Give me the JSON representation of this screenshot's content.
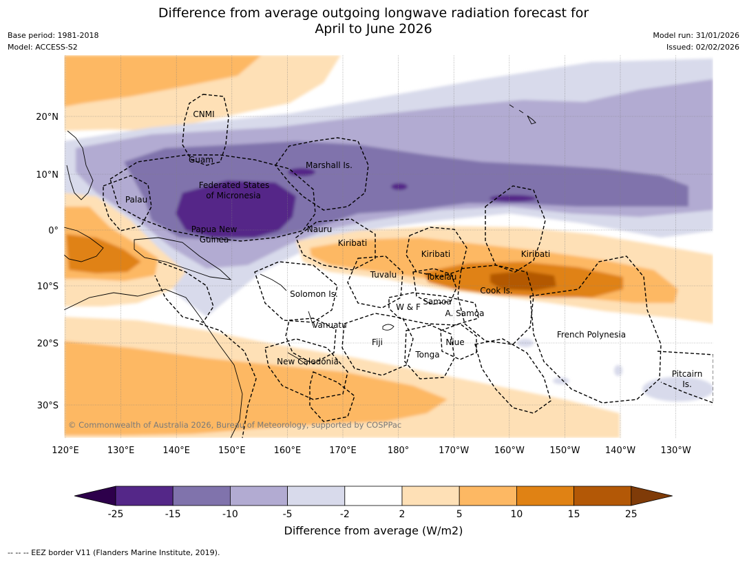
{
  "title_line1": "Difference from average outgoing longwave radiation forecast for",
  "title_line2": "April to June 2026",
  "base_period": "Base period: 1981-2018",
  "model": "Model: ACCESS-S2",
  "model_run": "Model run: 31/01/2026",
  "issued": "Issued: 02/02/2026",
  "lon_labels": [
    "120°E",
    "130°E",
    "140°E",
    "150°E",
    "160°E",
    "170°E",
    "180°",
    "170°W",
    "160°W",
    "150°W",
    "140°W",
    "130°W"
  ],
  "lat_labels": [
    "20°N",
    "10°N",
    "0°",
    "10°S",
    "20°S",
    "30°S"
  ],
  "regions": [
    "CNMI",
    "Guam",
    "Marshall Is.",
    "Federated States",
    "of Micronesia",
    "Palau",
    "Papua New",
    "Guinea",
    "Nauru",
    "Kiribati",
    "Kiribati",
    "Kiribati",
    "Tuvalu",
    "Tokelau",
    "Cook Is.",
    "Solomon Is.",
    "W & F",
    "Samoa",
    "A. Samoa",
    "Vanuatu",
    "Fiji",
    "Niue",
    "French Polynesia",
    "Tonga",
    "New Caledonia",
    "Pitcairn",
    "Is."
  ],
  "copyright": "© Commonwealth of Australia 2026, Bureau of Meteorology, supported by COSPPac",
  "colorbar": {
    "ticks": [
      "-25",
      "-15",
      "-10",
      "-5",
      "-2",
      "2",
      "5",
      "10",
      "15",
      "25"
    ],
    "colors": [
      "#542788",
      "#8073ac",
      "#b2abd2",
      "#d8daeb",
      "#ffffff",
      "#fee0b6",
      "#fdb863",
      "#e08214",
      "#b35806"
    ],
    "under_color": "#2d004b",
    "over_color": "#7f3b08",
    "label": "Difference from average (W/m2)"
  },
  "footer": "--  --  -- EEZ border V11 (Flanders Marine Institute, 2019)."
}
